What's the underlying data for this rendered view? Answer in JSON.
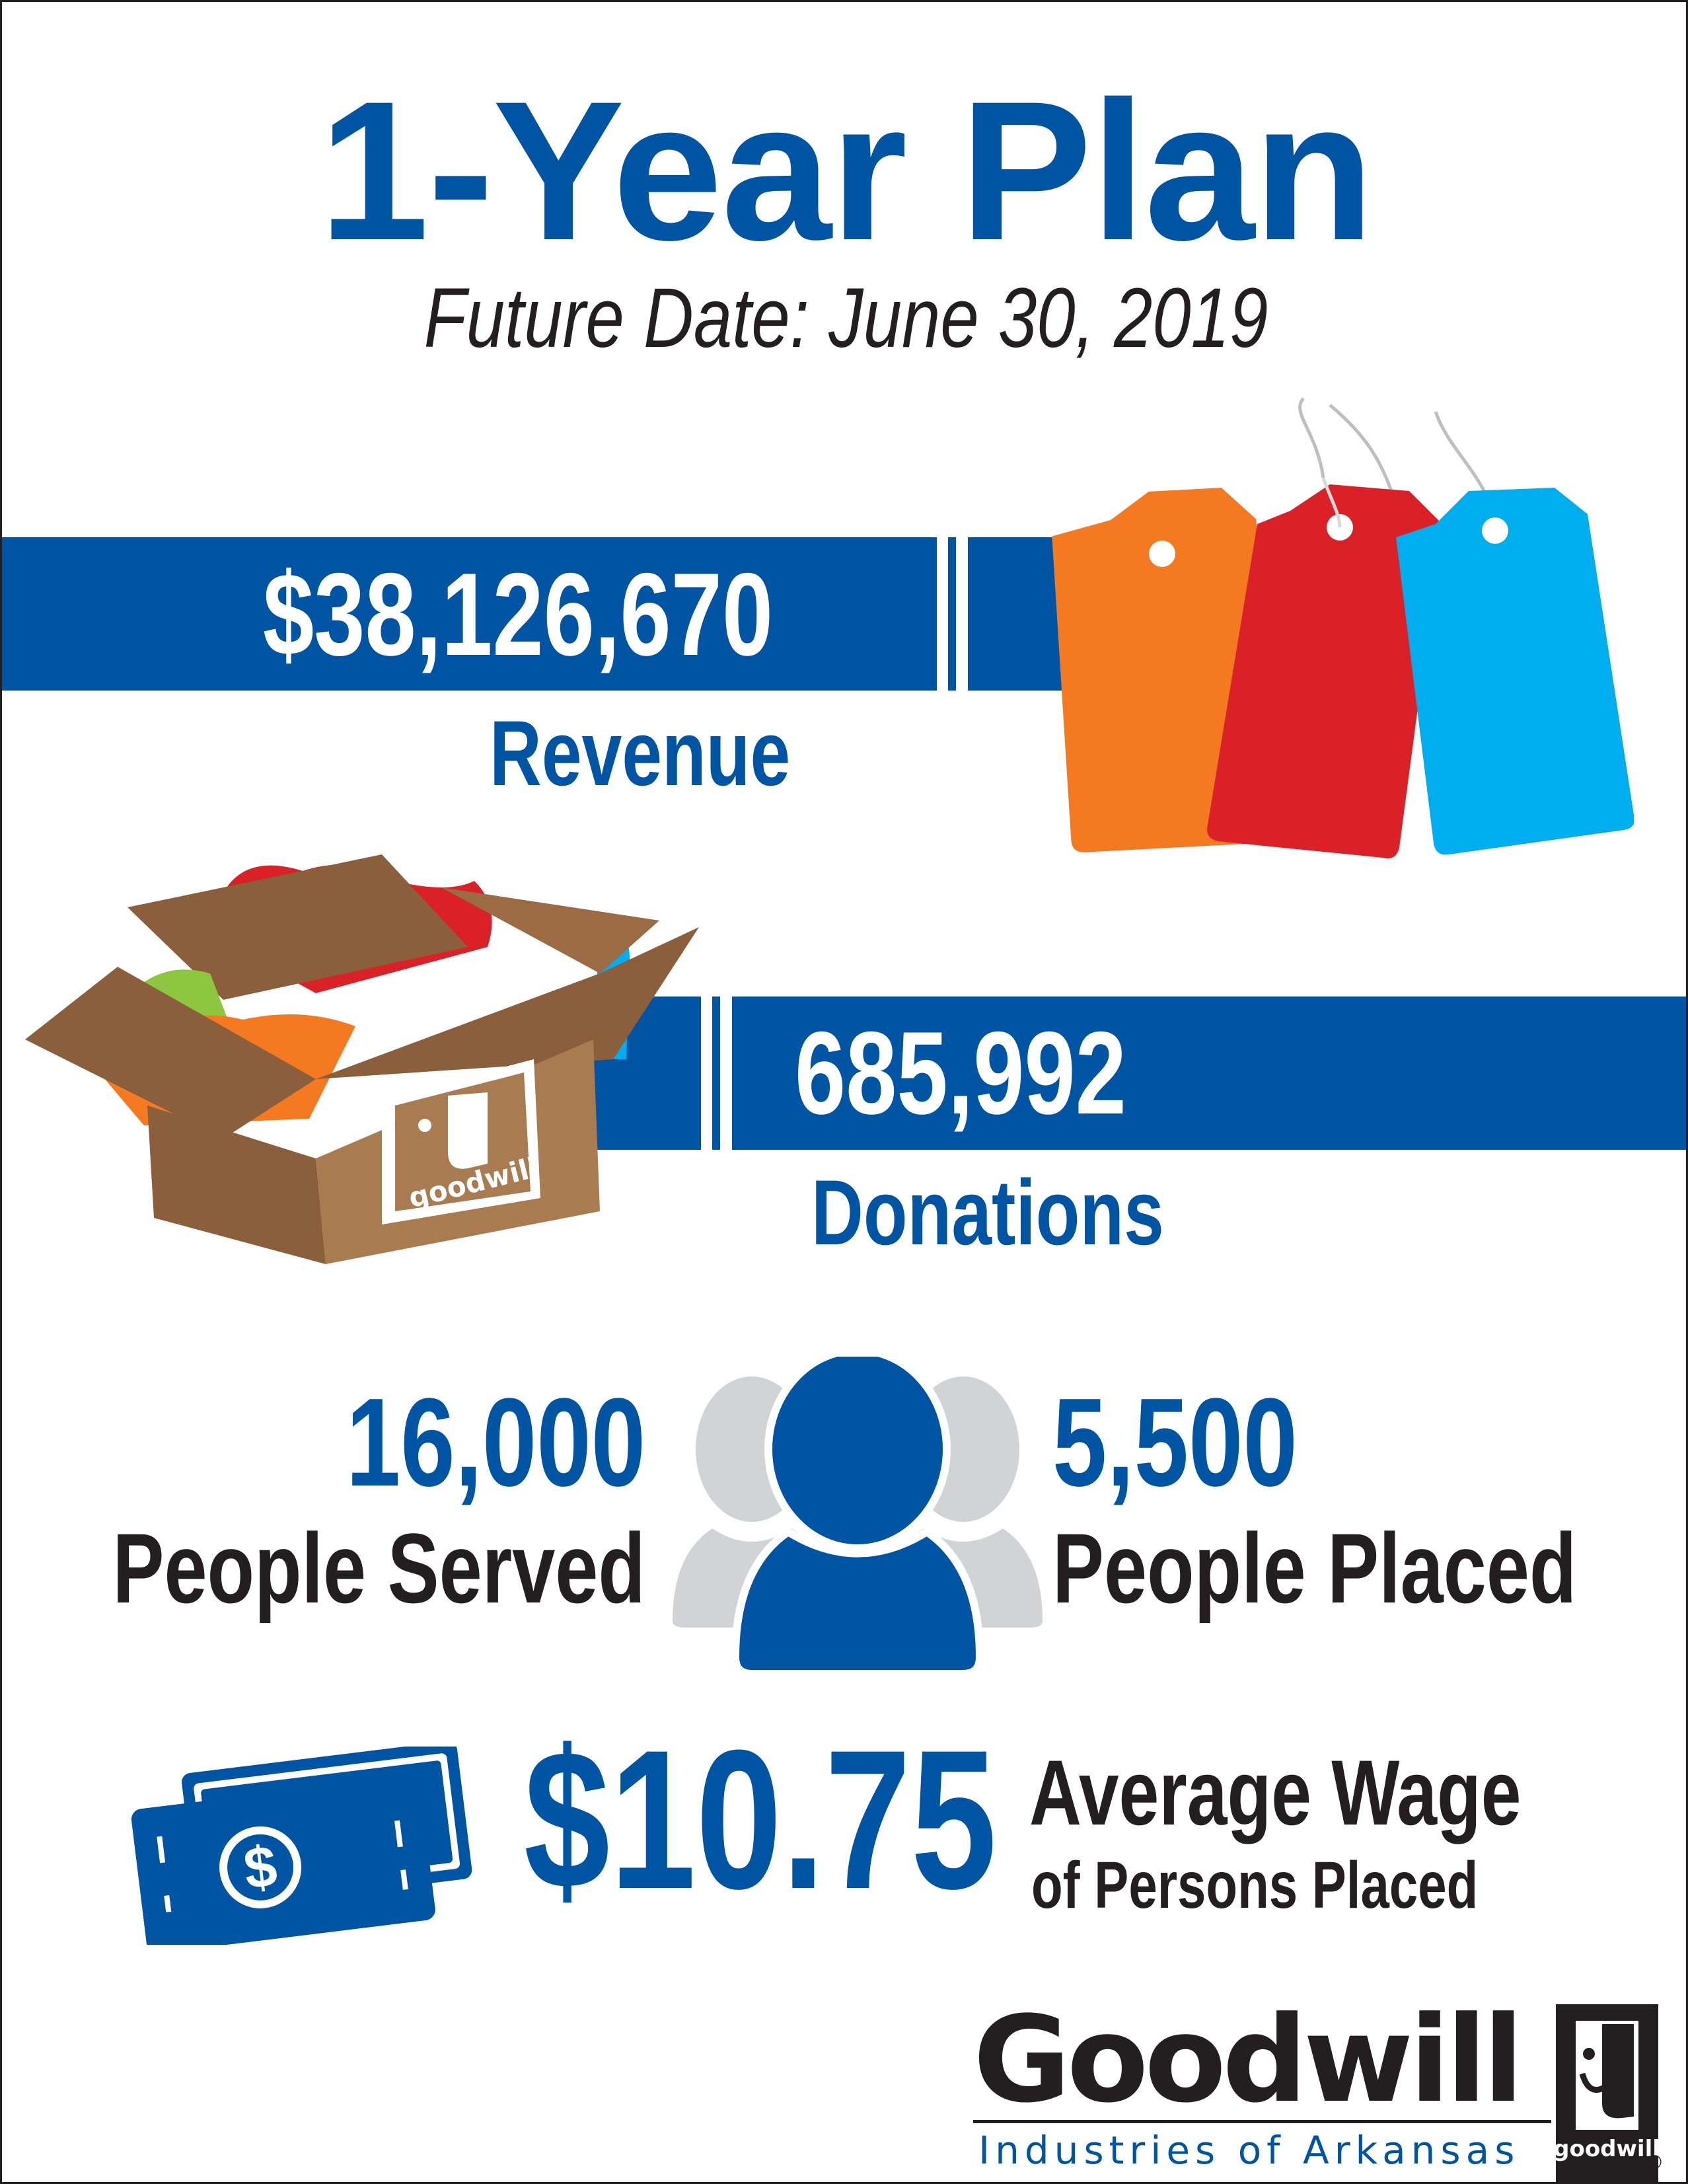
{
  "title": "1-Year Plan",
  "subtitle": "Future Date: June 30, 2019",
  "revenue": {
    "value": "$38,126,670",
    "label": "Revenue"
  },
  "donations": {
    "value": "685,992",
    "label": "Donations",
    "box_logo_text": "goodwill"
  },
  "people_served": {
    "value": "16,000",
    "label": "People Served"
  },
  "people_placed": {
    "value": "5,500",
    "label": "People Placed"
  },
  "wage": {
    "value": "$10.75",
    "label": "Average Wage",
    "sublabel": "of Persons Placed",
    "bill_symbol": "$"
  },
  "logo": {
    "name": "Goodwill",
    "tagline": "Industries of Arkansas",
    "mark_text": "goodwill",
    "registered": "®"
  },
  "icons": {
    "price_tags": "price-tags-icon",
    "donation_box": "donation-box-icon",
    "people": "people-icon",
    "money": "money-bills-icon"
  },
  "colors": {
    "brand_blue": "#0054a4",
    "text_dark": "#231f20",
    "tag_orange": "#f47920",
    "tag_red": "#da2128",
    "tag_cyan": "#00aeef",
    "box_brown": "#a87b50",
    "person_gray": "#d1d3d4"
  }
}
